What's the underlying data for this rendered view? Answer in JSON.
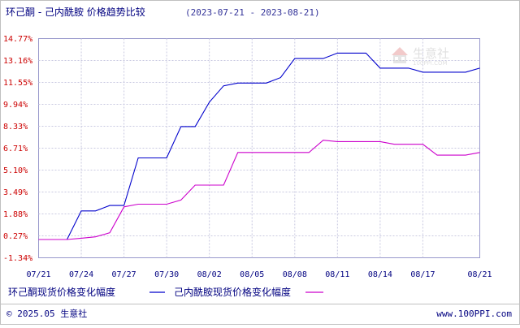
{
  "header": {
    "title": "环己酮 - 己内酰胺 价格趋势比较",
    "range": "(2023-07-21 - 2023-08-21)"
  },
  "watermark": {
    "name": "生意社",
    "url": "100PPI.COM"
  },
  "legend": {
    "items": [
      {
        "label": "环己酮现货价格变化幅度",
        "color": "#0000cc"
      },
      {
        "label": "己内酰胺现货价格变化幅度",
        "color": "#cc00cc"
      }
    ]
  },
  "footer": {
    "copyright": "© 2025.05 生意社",
    "site": "www.100PPI.com"
  },
  "chart_data": {
    "type": "line",
    "title": "环己酮 - 己内酰胺 价格趋势比较",
    "subtitle": "(2023-07-21 - 2023-08-21)",
    "xlabel": "",
    "ylabel": "",
    "x": [
      "07/21",
      "07/22",
      "07/23",
      "07/24",
      "07/25",
      "07/26",
      "07/27",
      "07/28",
      "07/29",
      "07/30",
      "07/31",
      "08/01",
      "08/02",
      "08/03",
      "08/04",
      "08/05",
      "08/06",
      "08/07",
      "08/08",
      "08/09",
      "08/10",
      "08/11",
      "08/12",
      "08/13",
      "08/14",
      "08/15",
      "08/16",
      "08/17",
      "08/18",
      "08/19",
      "08/20",
      "08/21"
    ],
    "xtick_labels": [
      "07/21",
      "07/24",
      "07/27",
      "07/30",
      "08/02",
      "08/05",
      "08/08",
      "08/11",
      "08/14",
      "08/17",
      "08/21"
    ],
    "xtick_index": [
      0,
      3,
      6,
      9,
      12,
      15,
      18,
      21,
      24,
      27,
      31
    ],
    "ytick_labels": [
      "14.77%",
      "13.16%",
      "11.55%",
      "9.94%",
      "8.33%",
      "6.71%",
      "5.10%",
      "3.49%",
      "1.88%",
      "0.27%",
      "-1.34%"
    ],
    "ylim": [
      -1.34,
      14.77
    ],
    "grid": true,
    "legend_position": "bottom",
    "series": [
      {
        "name": "环己酮现货价格变化幅度",
        "color": "#0000cc",
        "values": [
          0.0,
          0.0,
          0.0,
          2.1,
          2.1,
          2.5,
          2.5,
          6.0,
          6.0,
          6.0,
          8.3,
          8.3,
          10.1,
          11.3,
          11.5,
          11.5,
          11.5,
          11.9,
          13.3,
          13.3,
          13.3,
          13.7,
          13.7,
          13.7,
          12.6,
          12.6,
          12.6,
          12.3,
          12.3,
          12.3,
          12.3,
          12.6
        ]
      },
      {
        "name": "己内酰胺现货价格变化幅度",
        "color": "#cc00cc",
        "values": [
          0.0,
          0.0,
          0.0,
          0.1,
          0.2,
          0.5,
          2.4,
          2.6,
          2.6,
          2.6,
          2.9,
          4.0,
          4.0,
          4.0,
          6.4,
          6.4,
          6.4,
          6.4,
          6.4,
          6.4,
          7.3,
          7.2,
          7.2,
          7.2,
          7.2,
          7.0,
          7.0,
          7.0,
          6.2,
          6.2,
          6.2,
          6.4
        ]
      }
    ]
  }
}
